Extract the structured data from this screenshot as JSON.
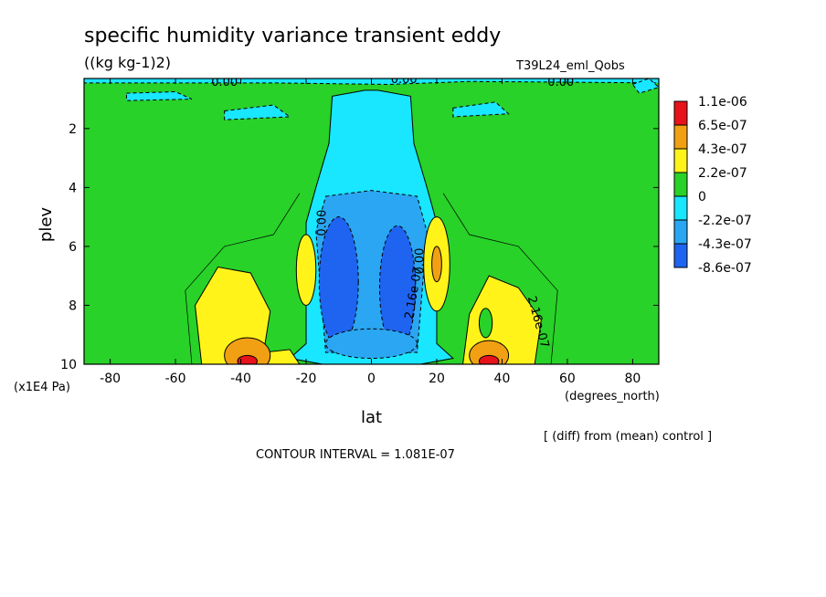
{
  "title": "specific humidity variance transient eddy",
  "units": "((kg kg-1)2)",
  "run_label": "T39L24_eml_Qobs",
  "chart_data": {
    "type": "heatmap",
    "title": "specific humidity variance transient eddy",
    "xlabel": "lat",
    "ylabel": "plev",
    "x_units": "(degrees_north)",
    "y_units": "(x1E4 Pa)",
    "xlim": [
      -88,
      88
    ],
    "ylim": [
      10,
      0.3
    ],
    "y_reversed": true,
    "x_ticks": [
      "-80",
      "-60",
      "-40",
      "-20",
      "0",
      "20",
      "40",
      "60",
      "80"
    ],
    "y_ticks": [
      "2",
      "4",
      "6",
      "8",
      "10"
    ],
    "legend_levels": [
      "1.1e-06",
      "6.5e-07",
      "4.3e-07",
      "2.2e-07",
      "0",
      "-2.2e-07",
      "-4.3e-07",
      "-8.6e-07"
    ],
    "colors": {
      "lvl_pos4": "#e8121b",
      "lvl_pos3": "#f2a013",
      "lvl_pos2": "#fff31a",
      "lvl_pos1": "#28d228",
      "lvl_neg1": "#19e6ff",
      "lvl_neg2": "#2ba6f2",
      "lvl_neg3": "#1e64f0"
    },
    "contour_labels": [
      "0.00",
      "0.00",
      "0.00",
      "0.00",
      "2.16e-07",
      "2.16e-07",
      "0.00"
    ],
    "contour_interval": "CONTOUR INTERVAL = 1.081E-07"
  },
  "footer": {
    "diff_note": "[ (diff) from (mean) control ]"
  }
}
